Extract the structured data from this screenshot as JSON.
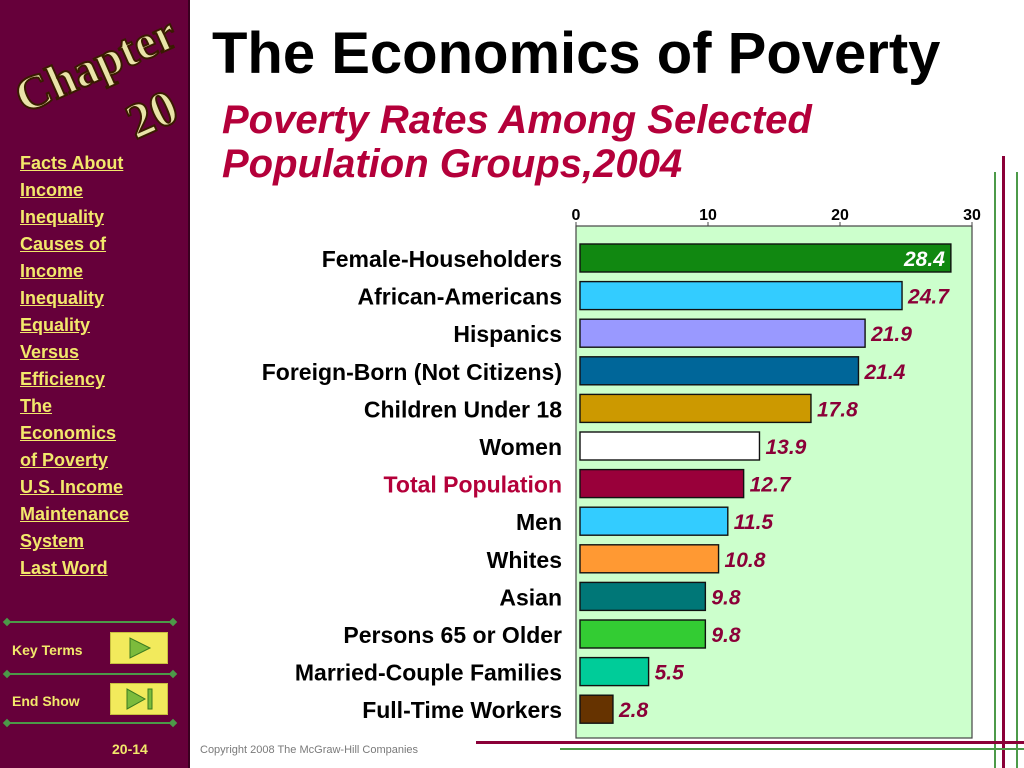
{
  "badge": {
    "chapter": "Chapter",
    "number": "20"
  },
  "nav": {
    "items": [
      "Facts About",
      "Income",
      "Inequality",
      "Causes of",
      "Income",
      "Inequality",
      "Equality",
      "Versus",
      "Efficiency",
      "The",
      "Economics",
      "of Poverty",
      "U.S. Income",
      "Maintenance",
      "System",
      "Last Word"
    ]
  },
  "buttons": {
    "key_terms": "Key Terms",
    "end_show": "End Show"
  },
  "footer": {
    "slide_number": "20-14",
    "copyright": "Copyright 2008 The McGraw-Hill Companies"
  },
  "slide": {
    "title": "The Economics of Poverty",
    "subtitle": "Poverty Rates Among Selected Population Groups,2004"
  },
  "colors": {
    "sidebar": "#66003a",
    "accent": "#b4003a",
    "nav_text": "#f2e86b",
    "plot_bg": "#ccffcc",
    "value_label": "#8b0038"
  },
  "chart_data": {
    "type": "bar",
    "orientation": "horizontal",
    "categories": [
      "Female-Householders",
      "African-Americans",
      "Hispanics",
      "Foreign-Born (Not Citizens)",
      "Children Under 18",
      "Women",
      "Total Population",
      "Men",
      "Whites",
      "Asian",
      "Persons 65 or Older",
      "Married-Couple Families",
      "Full-Time Workers"
    ],
    "values": [
      28.4,
      24.7,
      21.9,
      21.4,
      17.8,
      13.9,
      12.7,
      11.5,
      10.8,
      9.8,
      9.8,
      5.5,
      2.8
    ],
    "value_labels": [
      "28.4",
      "24.7",
      "21.9",
      "21.4",
      "17.8",
      "13.9",
      "12.7",
      "11.5",
      "10.8",
      "9.8",
      "9.8",
      "5.5",
      "2.8"
    ],
    "bar_colors": [
      "#118811",
      "#33ccff",
      "#9999ff",
      "#006699",
      "#cc9900",
      "#ffffff",
      "#99003a",
      "#33ccff",
      "#ff9933",
      "#007777",
      "#33cc33",
      "#00cc99",
      "#663300"
    ],
    "highlight_category": "Total Population",
    "xlim": [
      0,
      30
    ],
    "xticks": [
      "0",
      "10",
      "20",
      "30"
    ],
    "xtick_values": [
      0,
      10,
      20,
      30
    ],
    "axis_position": "top",
    "grid": false,
    "title": "",
    "xlabel": "",
    "ylabel": ""
  }
}
